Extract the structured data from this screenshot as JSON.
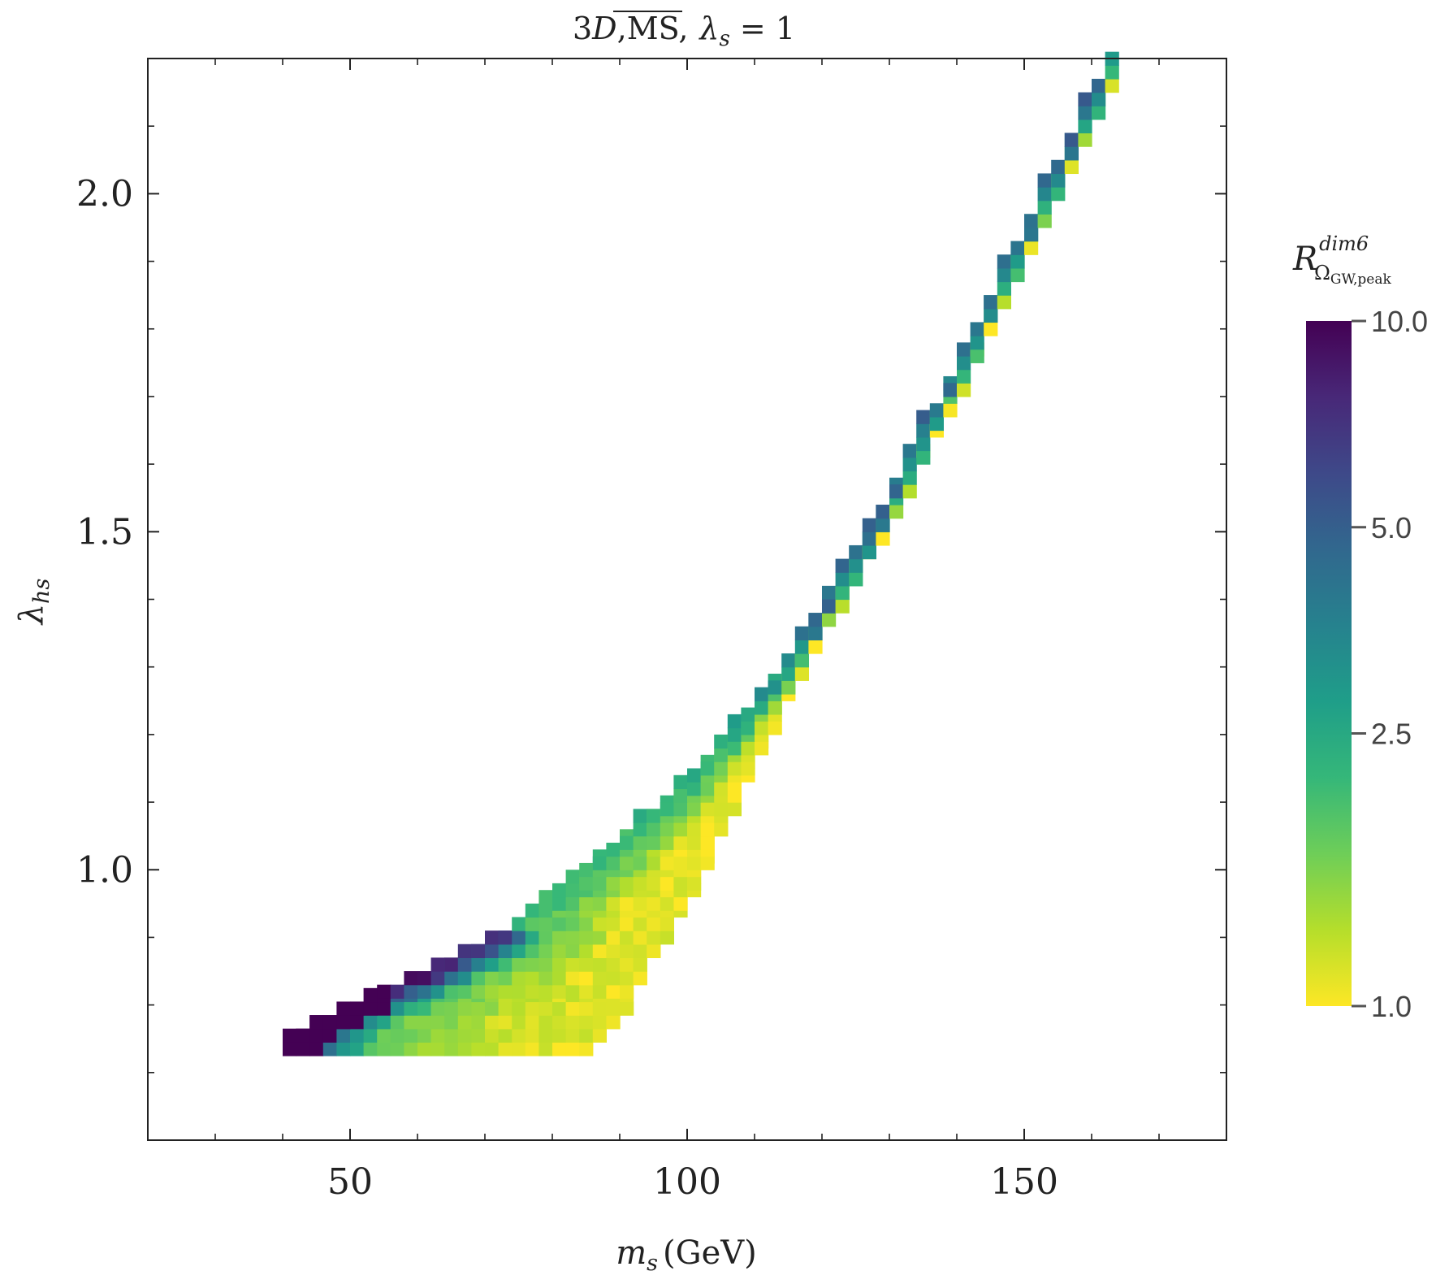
{
  "chart_data": {
    "type": "heatmap",
    "title": "3D, MS, λs = 1",
    "title_parts": {
      "prefix": "3",
      "D": "D",
      "comma": ",",
      "ms": "MS",
      "sep": ",",
      "lambda": "λ",
      "lambda_sub": "s",
      "eq": " = 1"
    },
    "xlabel": {
      "m": "m",
      "sub": "s",
      "unit": "(GeV)"
    },
    "ylabel": {
      "lambda": "λ",
      "sub": "hs"
    },
    "xlim": [
      20,
      180
    ],
    "ylim": [
      0.6,
      2.2
    ],
    "x_major_ticks": [
      50,
      100,
      150
    ],
    "x_major_labels": [
      "50",
      "100",
      "150"
    ],
    "x_minor_ticks": [
      30,
      40,
      60,
      70,
      80,
      90,
      110,
      120,
      130,
      140,
      160,
      170
    ],
    "y_major_ticks": [
      1.0,
      1.5,
      2.0
    ],
    "y_major_labels": [
      "1.0",
      "1.5",
      "2.0"
    ],
    "y_minor_ticks": [
      0.7,
      0.8,
      0.9,
      1.1,
      1.2,
      1.3,
      1.4,
      1.6,
      1.7,
      1.8,
      1.9,
      2.1
    ],
    "grid": false,
    "colorbar": {
      "label": {
        "R": "R",
        "sup": "dim6",
        "sub_omega": "Ω",
        "sub_rest": "GW,peak"
      },
      "scale": "log",
      "range": [
        1.0,
        10.0
      ],
      "ticks": [
        1.0,
        2.5,
        5.0,
        10.0
      ],
      "tick_labels": [
        "1.0",
        "2.5",
        "5.0",
        "10.0"
      ],
      "colormap": "viridis_r",
      "stops": [
        "#fde725",
        "#b5de2b",
        "#6ece58",
        "#35b779",
        "#1f9e89",
        "#26828e",
        "#31688e",
        "#3e4989",
        "#482878",
        "#440154"
      ]
    },
    "cell": {
      "dx": 2.0,
      "dy": 0.02
    },
    "region_edges": [
      [
        40.0,
        0.73,
        86.0,
        0.725
      ],
      [
        42.0,
        0.75,
        88.0,
        0.745
      ],
      [
        45.0,
        0.77,
        89.5,
        0.765
      ],
      [
        50.0,
        0.795,
        90.5,
        0.785
      ],
      [
        55.5,
        0.82,
        92.0,
        0.81
      ],
      [
        61.0,
        0.845,
        93.0,
        0.83
      ],
      [
        65.0,
        0.87,
        94.0,
        0.85
      ],
      [
        69.0,
        0.89,
        95.0,
        0.87
      ],
      [
        72.5,
        0.91,
        96.5,
        0.89
      ],
      [
        76.0,
        0.93,
        98.0,
        0.91
      ],
      [
        80.0,
        0.96,
        99.5,
        0.94
      ],
      [
        84.0,
        0.99,
        101.0,
        0.97
      ],
      [
        87.5,
        1.02,
        102.5,
        1.0
      ],
      [
        91.0,
        1.05,
        104.0,
        1.03
      ],
      [
        94.5,
        1.08,
        105.0,
        1.05
      ],
      [
        97.5,
        1.11,
        106.5,
        1.08
      ],
      [
        100.5,
        1.14,
        108.0,
        1.11
      ],
      [
        103.5,
        1.17,
        109.5,
        1.14
      ],
      [
        106.0,
        1.2,
        111.0,
        1.17
      ],
      [
        108.5,
        1.23,
        112.5,
        1.2
      ],
      [
        111.0,
        1.26,
        114.0,
        1.23
      ],
      [
        113.5,
        1.29,
        115.5,
        1.26
      ],
      [
        116.0,
        1.32,
        117.5,
        1.3
      ],
      [
        119.0,
        1.37,
        120.0,
        1.34
      ],
      [
        121.5,
        1.41,
        122.5,
        1.38
      ],
      [
        124.0,
        1.45,
        125.0,
        1.42
      ],
      [
        126.5,
        1.49,
        127.5,
        1.46
      ],
      [
        129.0,
        1.54,
        130.0,
        1.5
      ],
      [
        131.5,
        1.58,
        132.5,
        1.55
      ],
      [
        134.0,
        1.63,
        135.0,
        1.6
      ],
      [
        136.5,
        1.68,
        137.5,
        1.65
      ],
      [
        139.5,
        1.73,
        140.5,
        1.7
      ],
      [
        142.0,
        1.78,
        143.0,
        1.75
      ],
      [
        145.0,
        1.84,
        146.0,
        1.81
      ],
      [
        148.0,
        1.9,
        149.0,
        1.87
      ],
      [
        151.0,
        1.96,
        152.0,
        1.93
      ],
      [
        154.0,
        2.02,
        155.0,
        1.99
      ],
      [
        157.0,
        2.08,
        158.0,
        2.05
      ],
      [
        160.0,
        2.14,
        161.0,
        2.11
      ],
      [
        163.0,
        2.2,
        164.0,
        2.17
      ]
    ],
    "ratio_model": {
      "description_hidden": false,
      "saturation_points": [
        [
          41.0,
          0.73
        ],
        [
          42.0,
          0.75
        ],
        [
          44.0,
          0.77
        ],
        [
          46.0,
          0.77
        ],
        [
          50.0,
          0.79
        ],
        [
          52.0,
          0.81
        ],
        [
          54.0,
          0.83
        ]
      ]
    }
  }
}
